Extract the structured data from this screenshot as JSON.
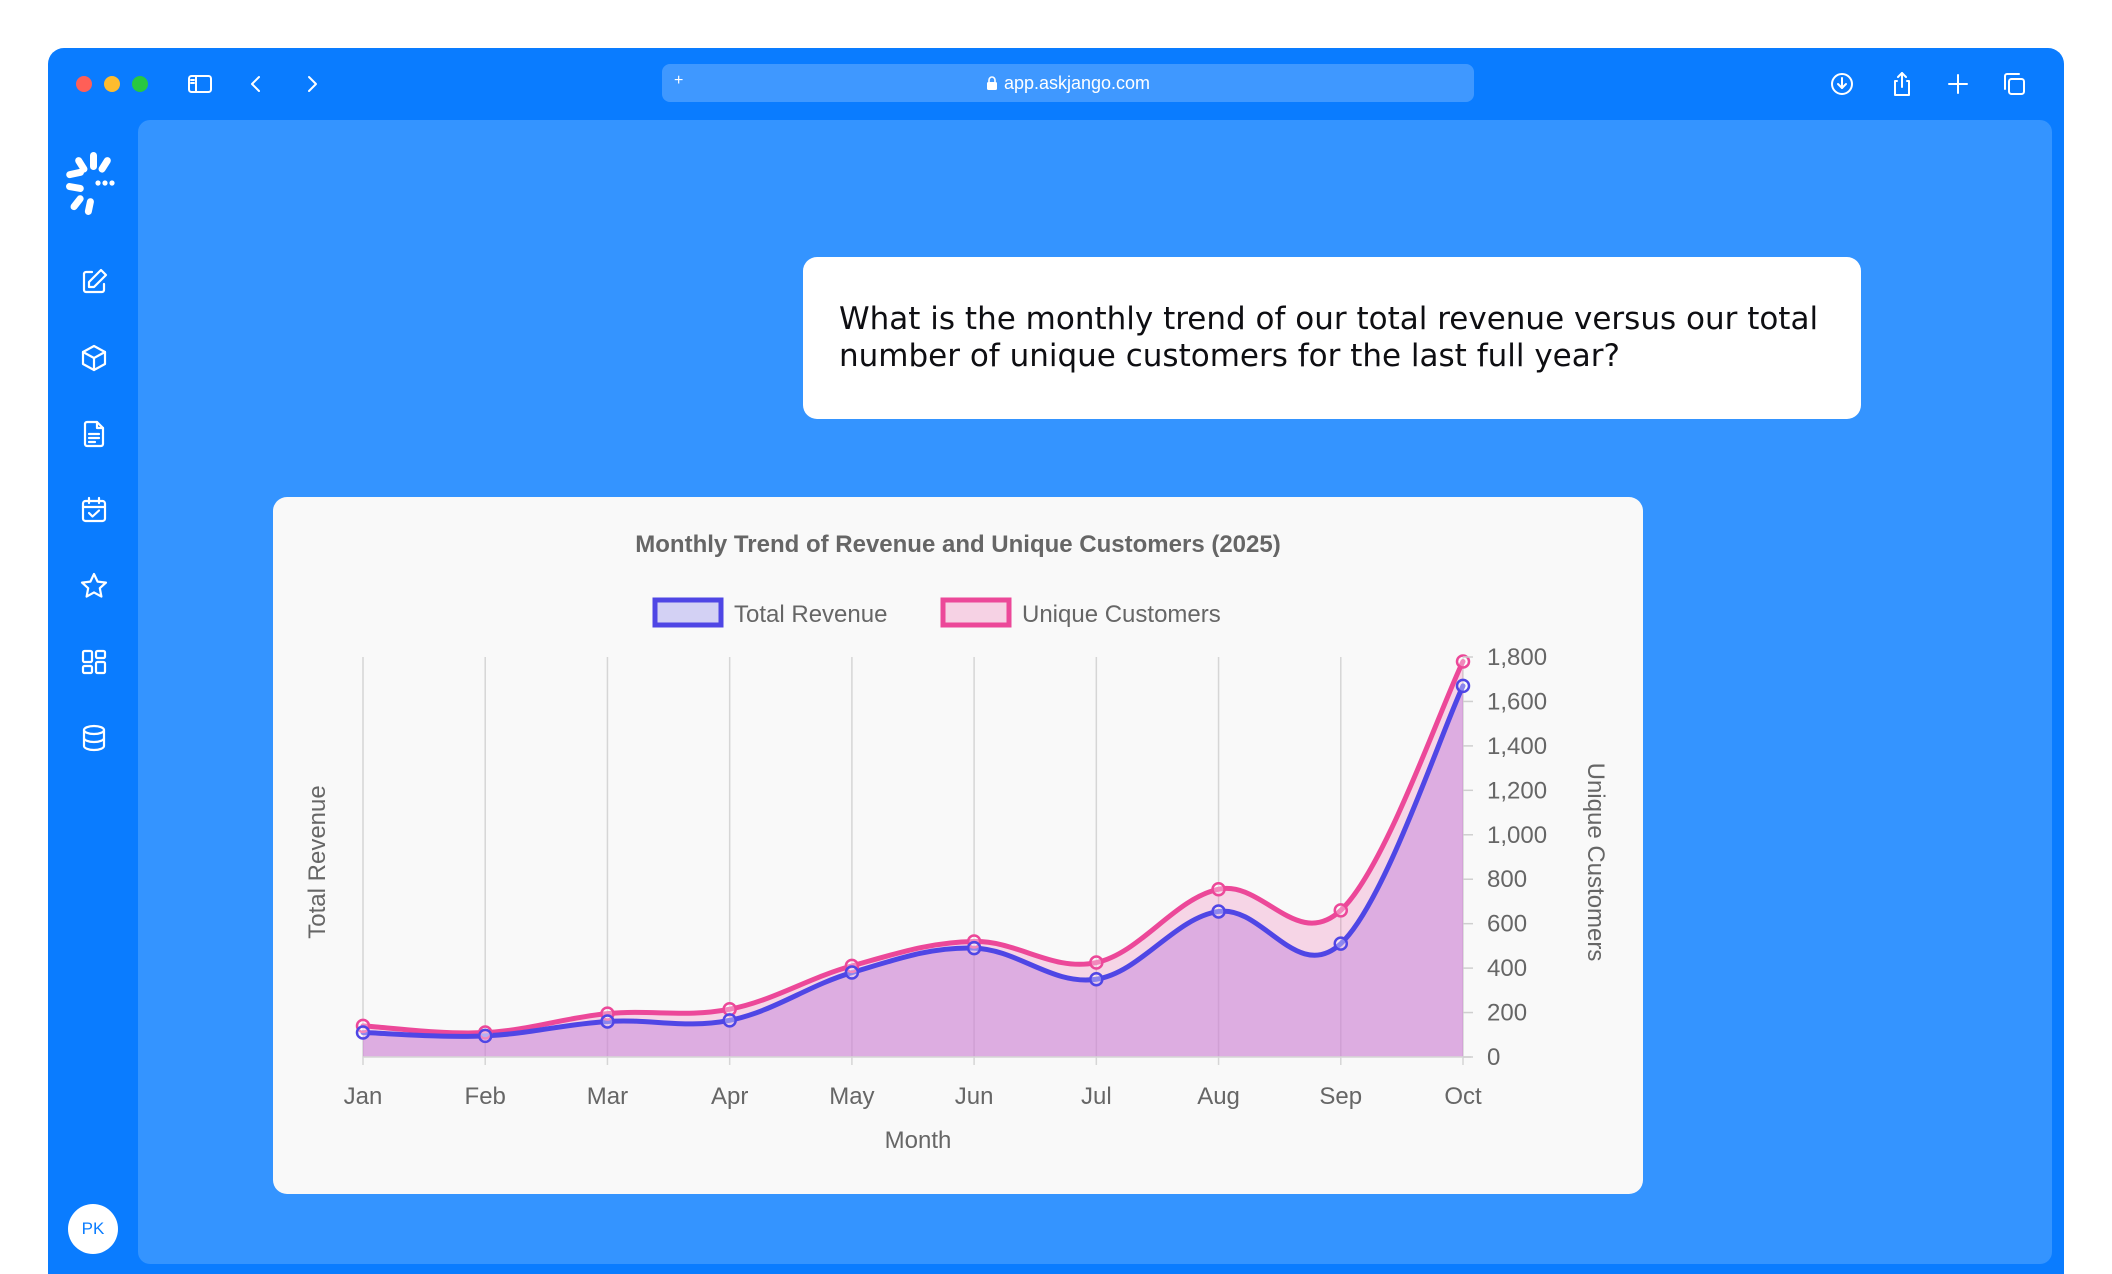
{
  "browser": {
    "url": "app.askjango.com",
    "new_tab_symbol": "+"
  },
  "sidebar": {
    "icons": [
      "edit-icon",
      "cube-icon",
      "document-icon",
      "calendar-check-icon",
      "star-icon",
      "dashboard-grid-icon",
      "database-icon"
    ],
    "avatar_initials": "PK"
  },
  "question": {
    "text": "What is the monthly trend of our total revenue versus our total number of unique customers for the last full year?"
  },
  "colors": {
    "window": "#0a7cff",
    "panel": "#3494ff",
    "revenue": "#4f46e5",
    "customers": "#ec4899"
  },
  "chart_data": {
    "type": "area",
    "title": "Monthly Trend of Revenue and Unique Customers (2025)",
    "xlabel": "Month",
    "ylabel": "Total Revenue",
    "y2label": "Unique Customers",
    "categories": [
      "Jan",
      "Feb",
      "Mar",
      "Apr",
      "May",
      "Jun",
      "Jul",
      "Aug",
      "Sep",
      "Oct"
    ],
    "series": [
      {
        "name": "Total Revenue",
        "axis": "left",
        "color": "#4f46e5",
        "values": [
          110,
          95,
          160,
          165,
          380,
          490,
          350,
          655,
          510,
          1670
        ]
      },
      {
        "name": "Unique Customers",
        "axis": "right",
        "color": "#ec4899",
        "values": [
          140,
          110,
          195,
          215,
          410,
          520,
          425,
          755,
          660,
          1780
        ]
      }
    ],
    "y2lim": [
      0,
      1800
    ],
    "y2ticks": [
      "0",
      "200",
      "400",
      "600",
      "800",
      "1,000",
      "1,200",
      "1,400",
      "1,600",
      "1,800"
    ],
    "grid": "vertical",
    "legend_position": "top"
  }
}
